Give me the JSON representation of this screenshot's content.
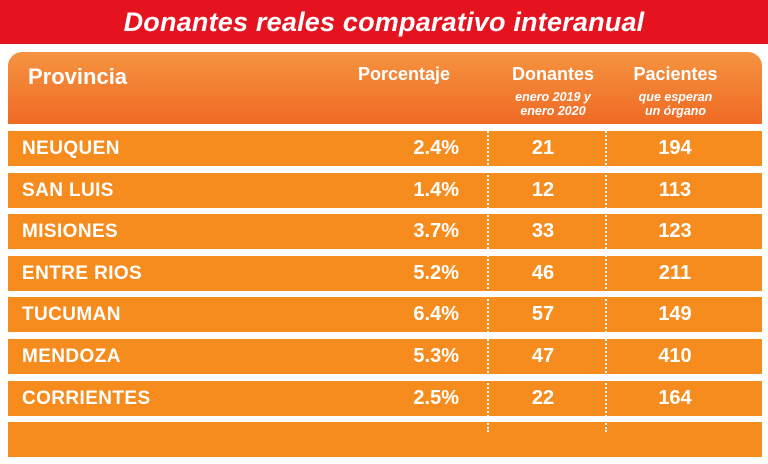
{
  "title": "Donantes reales comparativo interanual",
  "headers": {
    "province": "Provincia",
    "percentage": "Porcentaje",
    "donors": "Donantes",
    "donors_sub_1": "enero 2019 y",
    "donors_sub_2": "enero 2020",
    "patients": "Pacientes",
    "patients_sub_1": "que esperan",
    "patients_sub_2": "un órgano"
  },
  "rows": [
    {
      "province": "NEUQUEN",
      "percentage": "2.4%",
      "donors": "21",
      "patients": "194"
    },
    {
      "province": "SAN LUIS",
      "percentage": "1.4%",
      "donors": "12",
      "patients": "113"
    },
    {
      "province": "MISIONES",
      "percentage": "3.7%",
      "donors": "33",
      "patients": "123"
    },
    {
      "province": "ENTRE RIOS",
      "percentage": "5.2%",
      "donors": "46",
      "patients": "211"
    },
    {
      "province": "TUCUMAN",
      "percentage": "6.4%",
      "donors": "57",
      "patients": "149"
    },
    {
      "province": "MENDOZA",
      "percentage": "5.3%",
      "donors": "47",
      "patients": "410"
    },
    {
      "province": "CORRIENTES",
      "percentage": "2.5%",
      "donors": "22",
      "patients": "164"
    }
  ],
  "colors": {
    "title_bar": "#e4131f",
    "row": "#f68c1e",
    "header_top": "#f59440",
    "header_bottom": "#ef6a24",
    "text": "#ffffff"
  }
}
